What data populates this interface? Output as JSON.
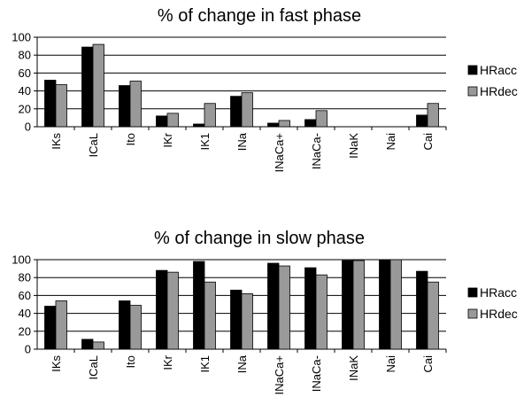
{
  "colors": {
    "series_1": "#000000",
    "series_2": "#999999",
    "grid": "#000000",
    "background": "#ffffff"
  },
  "chart_data": [
    {
      "type": "bar",
      "title": "% of change in fast phase",
      "xlabel": "",
      "ylabel": "",
      "ylim": [
        0,
        100
      ],
      "yticks": [
        0,
        20,
        40,
        60,
        80,
        100
      ],
      "grid": true,
      "legend_position": "right",
      "categories": [
        "IKs",
        "ICaL",
        "Ito",
        "IKr",
        "IK1",
        "INa",
        "INaCa+",
        "INaCa-",
        "INaK",
        "Nai",
        "Cai"
      ],
      "series": [
        {
          "name": "HRacc",
          "values": [
            52,
            89,
            46,
            12,
            3,
            34,
            4,
            8,
            0,
            0,
            13
          ]
        },
        {
          "name": "HRdec",
          "values": [
            47,
            92,
            51,
            15,
            26,
            38,
            7,
            18,
            0,
            0,
            26
          ]
        }
      ]
    },
    {
      "type": "bar",
      "title": "% of change in slow phase",
      "xlabel": "",
      "ylabel": "",
      "ylim": [
        0,
        100
      ],
      "yticks": [
        0,
        20,
        40,
        60,
        80,
        100
      ],
      "grid": true,
      "legend_position": "right",
      "categories": [
        "IKs",
        "ICaL",
        "Ito",
        "IKr",
        "IK1",
        "INa",
        "INaCa+",
        "INaCa-",
        "INaK",
        "Nai",
        "Cai"
      ],
      "series": [
        {
          "name": "HRacc",
          "values": [
            48,
            11,
            54,
            88,
            98,
            66,
            96,
            91,
            99,
            100,
            87
          ]
        },
        {
          "name": "HRdec",
          "values": [
            54,
            8,
            49,
            86,
            75,
            62,
            93,
            83,
            99,
            100,
            75
          ]
        }
      ]
    }
  ]
}
